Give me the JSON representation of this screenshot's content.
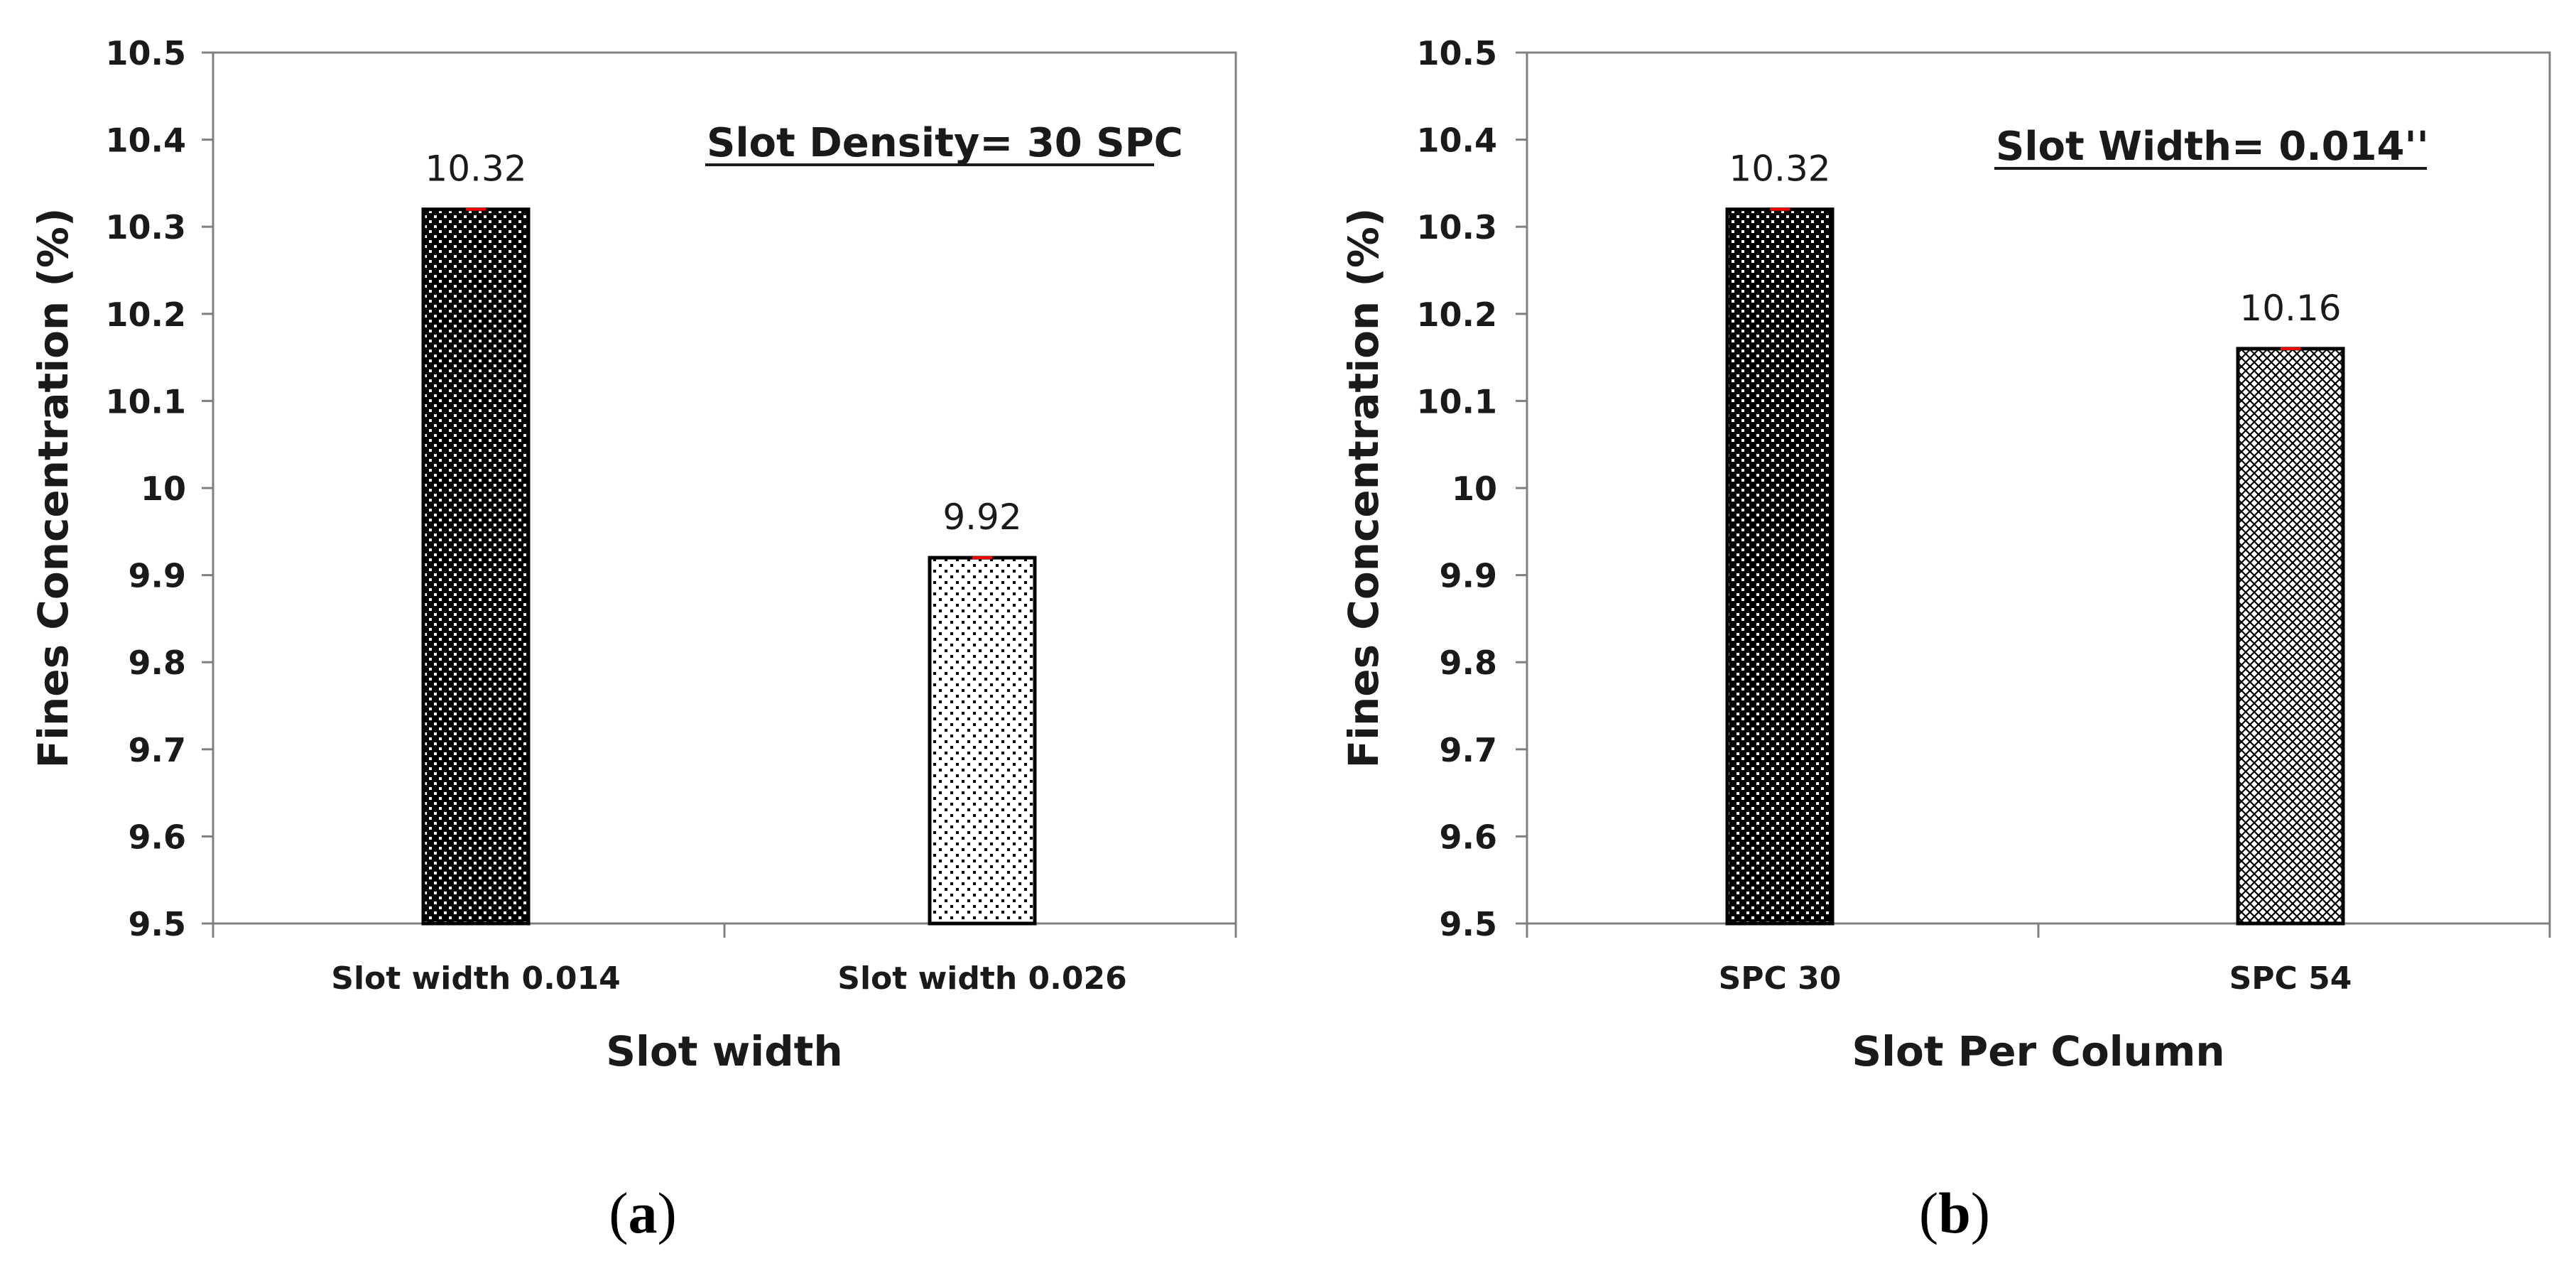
{
  "chart_data": [
    {
      "type": "bar",
      "panel_label": "(a)",
      "panel_letter": "a",
      "title": "Slot Density= 30 SPC",
      "xlabel": "Slot width",
      "ylabel": "Fines Concentration (%)",
      "ylim": [
        9.5,
        10.5
      ],
      "yticks": [
        9.5,
        9.6,
        9.7,
        9.8,
        9.9,
        10,
        10.1,
        10.2,
        10.3,
        10.4,
        10.5
      ],
      "ytick_labels": [
        "9.5",
        "9.6",
        "9.7",
        "9.8",
        "9.9",
        "10",
        "10.1",
        "10.2",
        "10.3",
        "10.4",
        "10.5"
      ],
      "categories": [
        "Slot width 0.014",
        "Slot width 0.026"
      ],
      "values": [
        10.32,
        9.92
      ],
      "data_labels": [
        "10.32",
        "9.92"
      ],
      "patterns": [
        "dense-dots",
        "sparse-dots"
      ],
      "grid": false,
      "legend": "none"
    },
    {
      "type": "bar",
      "panel_label": "(b)",
      "panel_letter": "b",
      "title": "Slot Width= 0.014''",
      "xlabel": "Slot Per Column",
      "ylabel": "Fines Concentration (%)",
      "ylim": [
        9.5,
        10.5
      ],
      "yticks": [
        9.5,
        9.6,
        9.7,
        9.8,
        9.9,
        10,
        10.1,
        10.2,
        10.3,
        10.4,
        10.5
      ],
      "ytick_labels": [
        "9.5",
        "9.6",
        "9.7",
        "9.8",
        "9.9",
        "10",
        "10.1",
        "10.2",
        "10.3",
        "10.4",
        "10.5"
      ],
      "categories": [
        "SPC 30",
        "SPC 54"
      ],
      "values": [
        10.32,
        10.16
      ],
      "data_labels": [
        "10.32",
        "10.16"
      ],
      "patterns": [
        "dense-dots",
        "crosshatch"
      ],
      "grid": false,
      "legend": "none"
    }
  ],
  "colors": {
    "axis": "#808080",
    "bar_outline": "#000000",
    "bar_dark": "#000000",
    "bar_light": "#ffffff",
    "error_tick": "#ff0000",
    "text": "#1a1a1a"
  }
}
